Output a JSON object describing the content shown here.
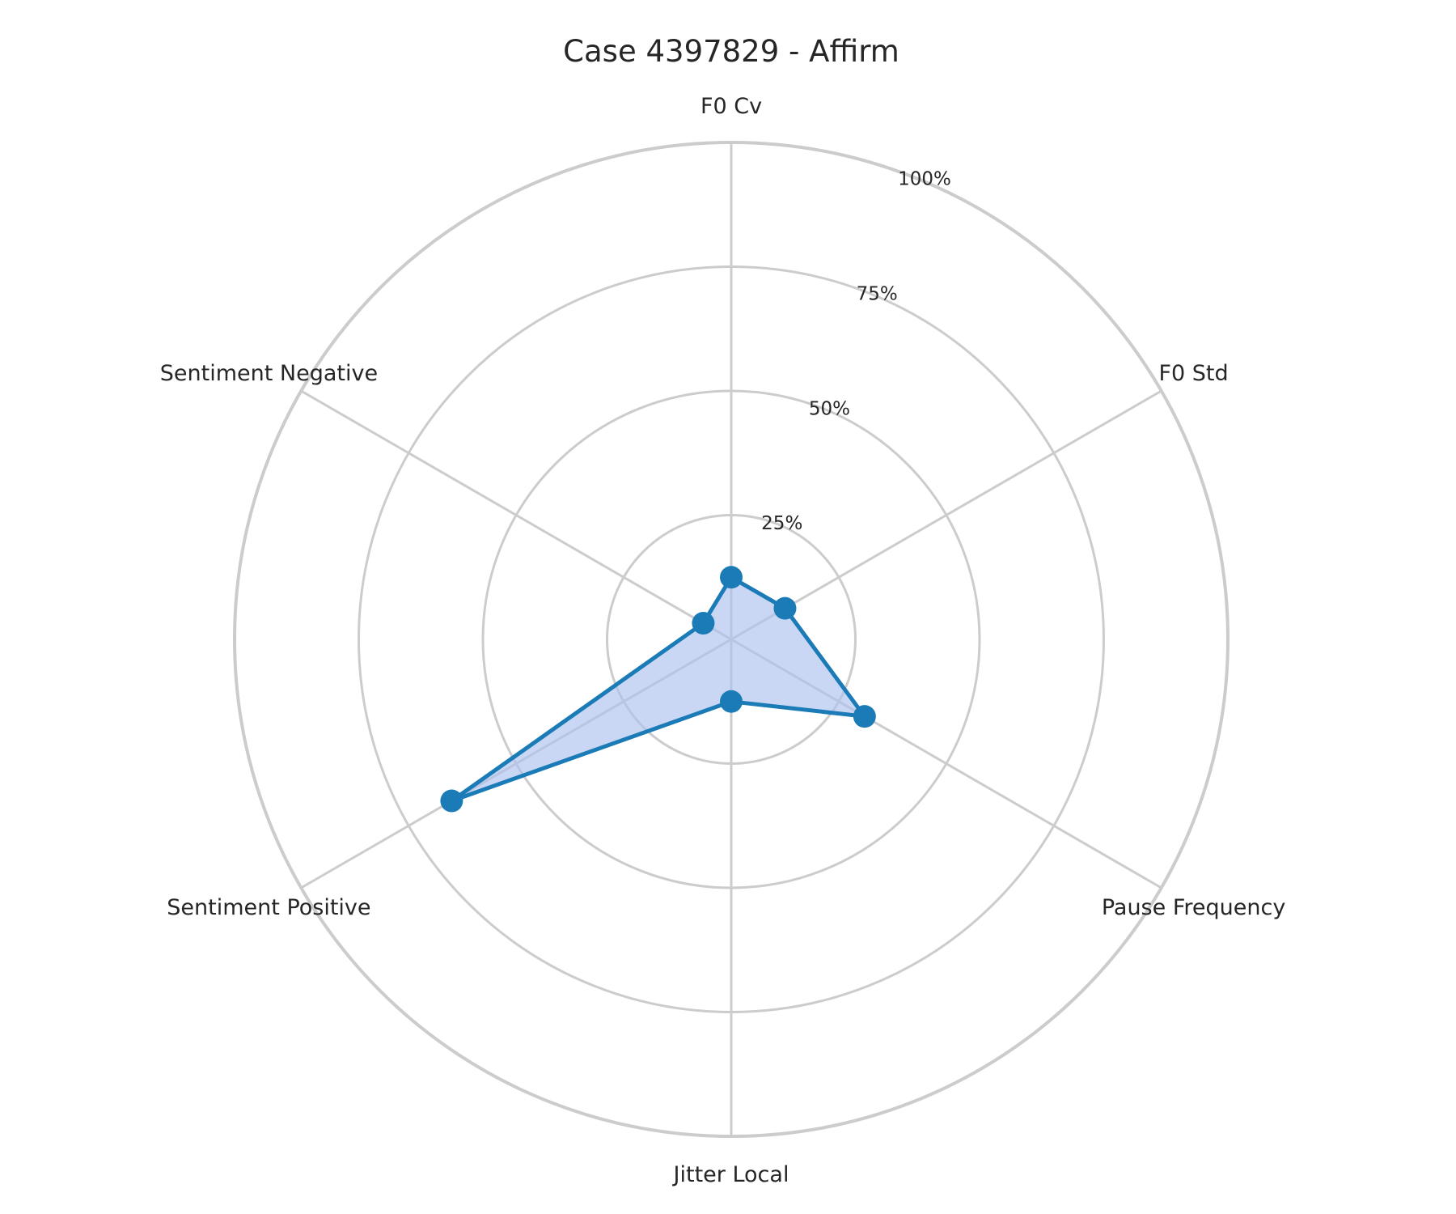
{
  "chart_data": {
    "type": "radar",
    "title": "Case 4397829 - Affirm",
    "axes": [
      "F0 Cv",
      "F0 Std",
      "Pause Frequency",
      "Jitter Local",
      "Sentiment Positive",
      "Sentiment Negative"
    ],
    "rlim": [
      0,
      100
    ],
    "rticks": [
      25,
      50,
      75,
      100
    ],
    "rtick_labels": [
      "25%",
      "50%",
      "75%",
      "100%"
    ],
    "series": [
      {
        "values": [
          12.5,
          12.5,
          31,
          12.5,
          65,
          6.5
        ]
      }
    ],
    "grid": true,
    "colors": {
      "line": "#1a7bb7",
      "fill": "#aec2ee",
      "grid": "#cccccc"
    }
  }
}
